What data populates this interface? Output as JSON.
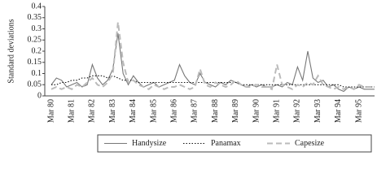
{
  "chart_data": {
    "type": "line",
    "y_label": "Standard deviations",
    "categories": [
      "Mar 80",
      null,
      null,
      null,
      "Mar 81",
      null,
      null,
      null,
      "Mar 82",
      null,
      null,
      null,
      "Mar 83",
      null,
      null,
      null,
      "Mar 84",
      null,
      null,
      null,
      "Mar 85",
      null,
      null,
      null,
      "Mar 86",
      null,
      null,
      null,
      "Mar 87",
      null,
      null,
      null,
      "Mar 88",
      null,
      null,
      null,
      "Mar 89",
      null,
      null,
      null,
      "Mar 90",
      null,
      null,
      null,
      "Mar 91",
      null,
      null,
      null,
      "Mar 92",
      null,
      null,
      null,
      "Mar 93",
      null,
      null,
      null,
      "Mar 94",
      null,
      null,
      null,
      "Mar 95",
      null,
      null,
      null
    ],
    "series": [
      {
        "name": "Handysize",
        "color": "#777777",
        "dash": "none",
        "values": [
          0.05,
          0.08,
          0.07,
          0.04,
          0.05,
          0.06,
          0.04,
          0.05,
          0.14,
          0.08,
          0.05,
          0.07,
          0.12,
          0.28,
          0.1,
          0.05,
          0.09,
          0.06,
          0.04,
          0.05,
          0.06,
          0.04,
          0.05,
          0.06,
          0.07,
          0.14,
          0.09,
          0.06,
          0.05,
          0.1,
          0.06,
          0.05,
          0.04,
          0.06,
          0.05,
          0.07,
          0.06,
          0.05,
          0.04,
          0.05,
          0.04,
          0.05,
          0.04,
          0.04,
          0.05,
          0.04,
          0.06,
          0.05,
          0.13,
          0.07,
          0.2,
          0.08,
          0.06,
          0.07,
          0.04,
          0.05,
          0.03,
          0.02,
          0.04,
          0.03,
          0.04,
          0.03,
          0.03,
          0.03
        ]
      },
      {
        "name": "Panamax",
        "color": "#111111",
        "dash": "1.5,2",
        "values": [
          0.05,
          0.05,
          0.06,
          0.06,
          0.07,
          0.07,
          0.08,
          0.08,
          0.09,
          0.09,
          0.09,
          0.08,
          0.09,
          0.08,
          0.07,
          0.07,
          0.07,
          0.06,
          0.06,
          0.06,
          0.06,
          0.06,
          0.06,
          0.06,
          0.06,
          0.06,
          0.06,
          0.06,
          0.06,
          0.06,
          0.06,
          0.06,
          0.06,
          0.06,
          0.06,
          0.06,
          0.06,
          0.05,
          0.05,
          0.05,
          0.05,
          0.05,
          0.05,
          0.05,
          0.05,
          0.05,
          0.05,
          0.05,
          0.05,
          0.05,
          0.05,
          0.05,
          0.05,
          0.05,
          0.05,
          0.05,
          0.05,
          0.04,
          0.04,
          0.04,
          0.04,
          0.04,
          0.04,
          0.04
        ]
      },
      {
        "name": "Capesize",
        "color": "#bbbbbb",
        "dash": "7,4",
        "values": [
          0.03,
          0.04,
          0.03,
          0.04,
          0.03,
          0.05,
          0.04,
          0.06,
          0.08,
          0.05,
          0.04,
          0.06,
          0.1,
          0.33,
          0.15,
          0.06,
          0.07,
          0.05,
          0.04,
          0.03,
          0.05,
          0.04,
          0.03,
          0.04,
          0.04,
          0.05,
          0.04,
          0.03,
          0.04,
          0.12,
          0.05,
          0.04,
          0.06,
          0.05,
          0.04,
          0.05,
          0.07,
          0.05,
          0.04,
          0.04,
          0.05,
          0.04,
          0.04,
          0.03,
          0.14,
          0.05,
          0.04,
          0.03,
          0.05,
          0.04,
          0.06,
          0.05,
          0.09,
          0.05,
          0.04,
          0.03,
          0.04,
          0.03,
          0.04,
          0.03,
          0.05,
          0.04,
          0.04,
          0.04
        ]
      }
    ],
    "ylim": [
      0,
      0.4
    ],
    "yticks": [
      0,
      0.05,
      0.1,
      0.15,
      0.2,
      0.25,
      0.3,
      0.35,
      0.4
    ],
    "legend": "bottom"
  }
}
